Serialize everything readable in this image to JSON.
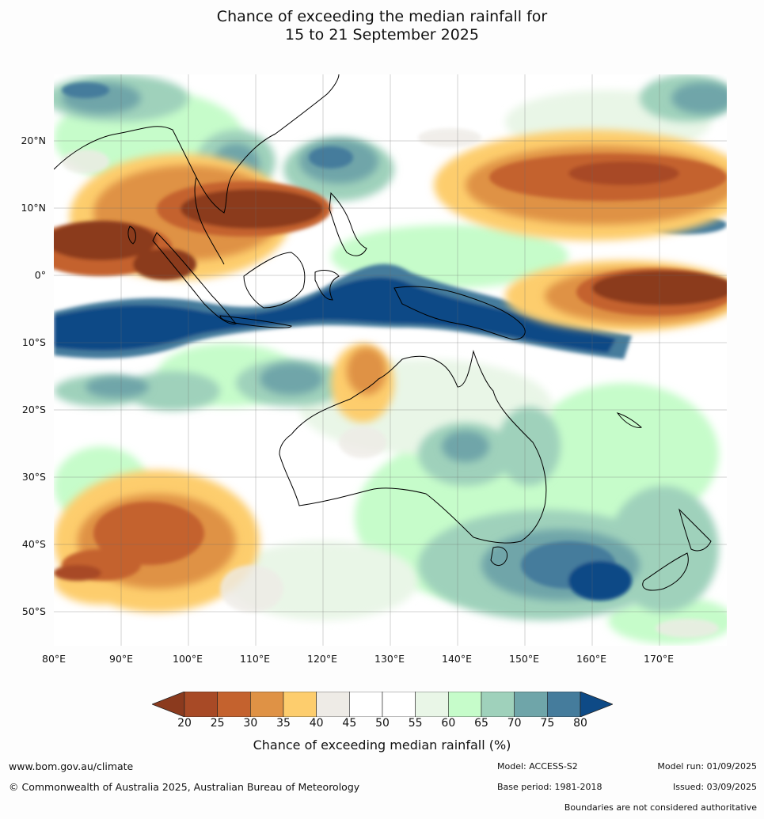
{
  "title": {
    "line1": "Chance of exceeding the median rainfall for",
    "line2": "15 to 21 September 2025"
  },
  "axes": {
    "lat_labels": [
      "20°N",
      "10°N",
      "0°",
      "10°S",
      "20°S",
      "30°S",
      "40°S",
      "50°S"
    ],
    "lon_labels": [
      "80°E",
      "90°E",
      "100°E",
      "110°E",
      "120°E",
      "130°E",
      "140°E",
      "150°E",
      "160°E",
      "170°E"
    ]
  },
  "colorbar": {
    "ticks": [
      "20",
      "25",
      "30",
      "35",
      "40",
      "45",
      "50",
      "55",
      "60",
      "65",
      "70",
      "75",
      "80"
    ],
    "below_color": "#8b3a1e",
    "above_color": "#0e4a86",
    "bin_colors": [
      "#a84a26",
      "#c4622e",
      "#df9245",
      "#fdcd6d",
      "#eeebe6",
      "#ffffff",
      "#ffffff",
      "#e9f6e7",
      "#c6fcca",
      "#9fd1bb",
      "#6fa5a9",
      "#457c9c"
    ],
    "label": "Chance of exceeding median rainfall (%)"
  },
  "footer": {
    "website": "www.bom.gov.au/climate",
    "copyright": "© Commonwealth of Australia 2025, Australian Bureau of Meteorology",
    "model": "Model: ACCESS-S2",
    "base_period": "Base period: 1981-2018",
    "model_run": "Model run: 01/09/2025",
    "issued": "Issued: 03/09/2025",
    "boundaries_note": "Boundaries are not considered authoritative"
  }
}
